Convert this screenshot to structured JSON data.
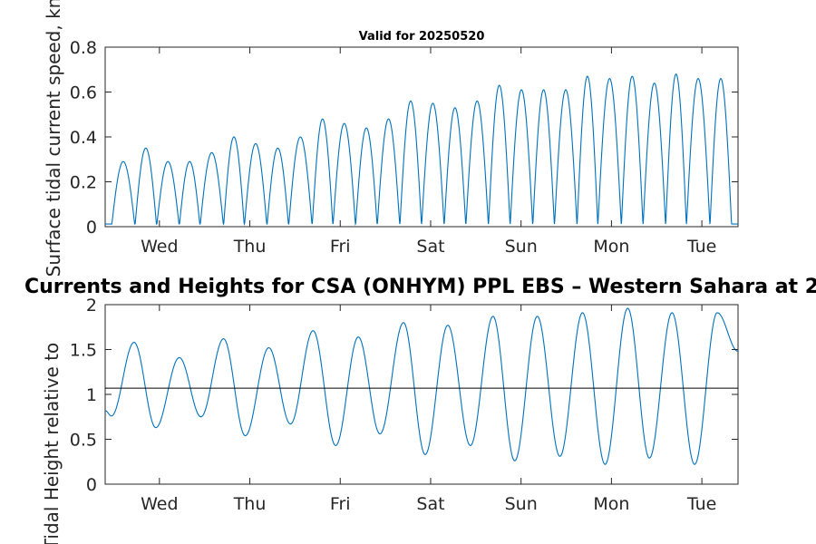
{
  "colors": {
    "series": "#0072BD",
    "reference": "#000000",
    "axes": "#262626"
  },
  "chart_data": [
    {
      "type": "line",
      "title": "Valid for 20250520",
      "ylabel": "Surface tidal current speed, kn",
      "ylim": [
        0,
        0.8
      ],
      "yticks": [
        "0",
        "0.2",
        "0.4",
        "0.6",
        "0.8"
      ],
      "ytick_values": [
        0,
        0.2,
        0.4,
        0.6,
        0.8
      ],
      "xlim_days": [
        0,
        7
      ],
      "xticks": [
        "Wed",
        "Thu",
        "Fri",
        "Sat",
        "Sun",
        "Mon",
        "Tue"
      ],
      "xtick_days": [
        0.6,
        1.6,
        2.6,
        3.6,
        4.6,
        5.6,
        6.6
      ],
      "grid": false,
      "series": [
        {
          "peak_times_days": [
            0.2,
            0.44,
            0.69,
            0.92,
            1.18,
            1.41,
            1.66,
            1.9,
            2.16,
            2.39,
            2.64,
            2.88,
            3.13,
            3.37,
            3.62,
            3.86,
            4.11,
            4.35,
            4.6,
            4.84,
            5.09,
            5.32,
            5.58,
            5.82,
            6.07,
            6.3,
            6.56,
            6.8
          ],
          "peak_values": [
            0.29,
            0.35,
            0.29,
            0.29,
            0.33,
            0.4,
            0.37,
            0.35,
            0.4,
            0.48,
            0.46,
            0.44,
            0.48,
            0.56,
            0.55,
            0.53,
            0.56,
            0.63,
            0.61,
            0.61,
            0.61,
            0.67,
            0.66,
            0.67,
            0.64,
            0.68,
            0.66,
            0.66
          ]
        }
      ]
    },
    {
      "type": "line",
      "title": "Currents and Heights for CSA (ONHYM) PPL EBS  – Western Sahara at 2",
      "ylabel": "Tidal Height relative to",
      "ylim": [
        0,
        2
      ],
      "yticks": [
        "0",
        "0.5",
        "1",
        "1.5",
        "2"
      ],
      "ytick_values": [
        0,
        0.5,
        1,
        1.5,
        2
      ],
      "xlim_days": [
        0,
        7
      ],
      "xticks": [
        "Wed",
        "Thu",
        "Fri",
        "Sat",
        "Sun",
        "Mon",
        "Tue"
      ],
      "xtick_days": [
        0.6,
        1.6,
        2.6,
        3.6,
        4.6,
        5.6,
        6.6
      ],
      "grid": false,
      "reference_line": 1.07,
      "series": [
        {
          "extreme_times_days": [
            0,
            0.07,
            0.32,
            0.56,
            0.82,
            1.06,
            1.31,
            1.55,
            1.81,
            2.05,
            2.3,
            2.55,
            2.8,
            3.04,
            3.3,
            3.54,
            3.79,
            4.04,
            4.29,
            4.53,
            4.78,
            5.03,
            5.28,
            5.53,
            5.78,
            6.02,
            6.27,
            6.52,
            6.77,
            7.0
          ],
          "extreme_values": [
            0.82,
            0.76,
            1.58,
            0.63,
            1.41,
            0.75,
            1.62,
            0.54,
            1.52,
            0.67,
            1.71,
            0.43,
            1.64,
            0.56,
            1.8,
            0.33,
            1.77,
            0.43,
            1.87,
            0.26,
            1.87,
            0.31,
            1.91,
            0.22,
            1.96,
            0.29,
            1.91,
            0.22,
            1.91,
            1.48
          ]
        }
      ]
    }
  ]
}
